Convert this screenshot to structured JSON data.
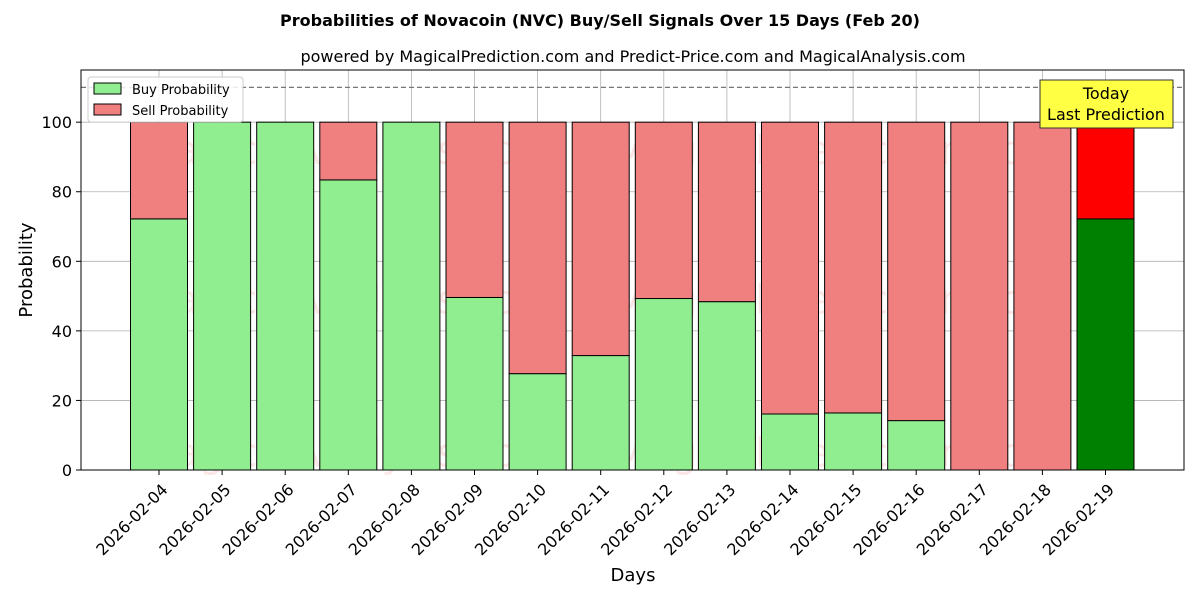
{
  "chart_data": {
    "type": "bar",
    "stacked": true,
    "title": "Probabilities of Novacoin (NVC) Buy/Sell Signals Over 15 Days (Feb 20)",
    "subtitle": "powered by MagicalPrediction.com and Predict-Price.com and MagicalAnalysis.com",
    "xlabel": "Days",
    "ylabel": "Probability",
    "ylim": [
      0,
      115
    ],
    "yticks": [
      0,
      20,
      40,
      60,
      80,
      100
    ],
    "reference_line": 110,
    "grid": true,
    "legend_position": "top-left",
    "categories": [
      "2026-02-04",
      "2026-02-05",
      "2026-02-06",
      "2026-02-07",
      "2026-02-08",
      "2026-02-09",
      "2026-02-10",
      "2026-02-11",
      "2026-02-12",
      "2026-02-13",
      "2026-02-14",
      "2026-02-15",
      "2026-02-16",
      "2026-02-17",
      "2026-02-18",
      "2026-02-19"
    ],
    "series": [
      {
        "name": "Buy Probability",
        "color": "#90ee90",
        "highlight_color": "#008000",
        "values": [
          72.2,
          100,
          100,
          83.4,
          100,
          49.6,
          27.7,
          32.9,
          49.3,
          48.4,
          16.1,
          16.4,
          14.2,
          0,
          0,
          72.2
        ]
      },
      {
        "name": "Sell Probability",
        "color": "#f08080",
        "highlight_color": "#ff0000",
        "values": [
          27.8,
          0,
          0,
          16.6,
          0,
          50.4,
          72.3,
          67.1,
          50.7,
          51.6,
          83.9,
          83.6,
          85.8,
          100,
          100,
          27.8
        ]
      }
    ],
    "annotation": {
      "lines": [
        "Today",
        "Last Prediction"
      ],
      "color": "#ffff44"
    },
    "watermarks": [
      "MagicalAnalysis.com",
      "MagicalPrediction.com"
    ]
  }
}
